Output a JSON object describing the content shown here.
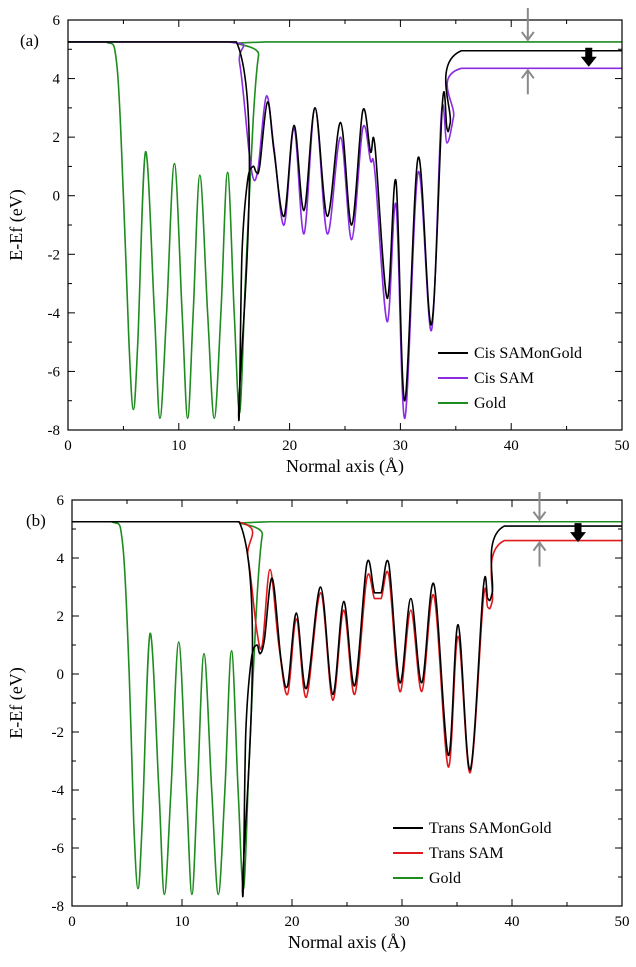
{
  "chart_data": [
    {
      "type": "line",
      "panel_label": "(a)",
      "xlabel": "Normal axis (Å)",
      "ylabel": "E-Ef (eV)",
      "xlim": [
        0,
        50
      ],
      "ylim": [
        -8,
        6
      ],
      "xticks": [
        "0",
        "10",
        "20",
        "30",
        "40",
        "50"
      ],
      "yticks": [
        "-8",
        "-6",
        "-4",
        "-2",
        "0",
        "2",
        "4",
        "6"
      ],
      "legend_position": "lower-right",
      "series": [
        {
          "name": "Cis SAMonGold",
          "color": "#000000",
          "points": [
            [
              0,
              5.25
            ],
            [
              15.2,
              5.25
            ],
            [
              15.4,
              -7.5
            ],
            [
              15.7,
              -2
            ],
            [
              16.2,
              0.5
            ],
            [
              16.7,
              1.0
            ],
            [
              17.0,
              0.8
            ],
            [
              17.3,
              1.0
            ],
            [
              18.0,
              3.2
            ],
            [
              18.6,
              1.5
            ],
            [
              19.5,
              -0.7
            ],
            [
              20.4,
              2.4
            ],
            [
              21.3,
              -0.5
            ],
            [
              22.3,
              3.0
            ],
            [
              23.4,
              -0.7
            ],
            [
              24.6,
              2.5
            ],
            [
              25.6,
              -1.0
            ],
            [
              26.6,
              2.9
            ],
            [
              27.3,
              1.5
            ],
            [
              27.7,
              1.7
            ],
            [
              28.8,
              -3.5
            ],
            [
              29.6,
              0.5
            ],
            [
              30.4,
              -7.0
            ],
            [
              31.6,
              1.3
            ],
            [
              32.8,
              -4.4
            ],
            [
              33.8,
              3.2
            ],
            [
              34.2,
              2.3
            ],
            [
              34.5,
              2.5
            ],
            [
              35.5,
              4.95
            ],
            [
              50,
              4.95
            ]
          ]
        },
        {
          "name": "Cis SAM",
          "color": "#8b2be2",
          "points": [
            [
              0,
              5.25
            ],
            [
              14.5,
              5.25
            ],
            [
              15.5,
              4.5
            ],
            [
              16.5,
              1.0
            ],
            [
              17.1,
              0.8
            ],
            [
              17.9,
              3.4
            ],
            [
              18.6,
              1.6
            ],
            [
              19.5,
              -1.0
            ],
            [
              20.4,
              2.3
            ],
            [
              21.3,
              -1.3
            ],
            [
              22.3,
              3.0
            ],
            [
              23.4,
              -1.3
            ],
            [
              24.6,
              2.0
            ],
            [
              25.6,
              -1.5
            ],
            [
              26.6,
              2.3
            ],
            [
              27.3,
              1.2
            ],
            [
              27.7,
              0.8
            ],
            [
              28.8,
              -4.3
            ],
            [
              29.6,
              -0.3
            ],
            [
              30.4,
              -7.6
            ],
            [
              31.6,
              0.8
            ],
            [
              32.8,
              -4.6
            ],
            [
              33.7,
              2.8
            ],
            [
              34.2,
              1.8
            ],
            [
              34.8,
              2.7
            ],
            [
              35.5,
              4.35
            ],
            [
              50,
              4.35
            ]
          ]
        },
        {
          "name": "Gold",
          "color": "#1e8c1e",
          "points": [
            [
              0,
              5.25
            ],
            [
              3.4,
              5.25
            ],
            [
              4.4,
              4.5
            ],
            [
              5.0,
              0
            ],
            [
              5.5,
              -5
            ],
            [
              5.9,
              -7.3
            ],
            [
              6.3,
              -5
            ],
            [
              7.0,
              1.5
            ],
            [
              7.8,
              -4
            ],
            [
              8.3,
              -7.6
            ],
            [
              8.9,
              -4
            ],
            [
              9.6,
              1.1
            ],
            [
              10.3,
              -4
            ],
            [
              10.8,
              -7.6
            ],
            [
              11.3,
              -4
            ],
            [
              11.9,
              0.7
            ],
            [
              12.6,
              -4
            ],
            [
              13.2,
              -7.6
            ],
            [
              13.8,
              -4
            ],
            [
              14.4,
              0.8
            ],
            [
              15.0,
              -4
            ],
            [
              15.5,
              -7.4
            ],
            [
              16.0,
              -3
            ],
            [
              16.7,
              2.5
            ],
            [
              17.2,
              4.8
            ],
            [
              17.8,
              5.25
            ],
            [
              50,
              5.25
            ]
          ]
        }
      ]
    },
    {
      "type": "line",
      "panel_label": "(b)",
      "xlabel": "Normal axis (Å)",
      "ylabel": "E-Ef (eV)",
      "xlim": [
        0,
        50
      ],
      "ylim": [
        -8,
        6
      ],
      "xticks": [
        "0",
        "10",
        "20",
        "30",
        "40",
        "50"
      ],
      "yticks": [
        "-8",
        "-6",
        "-4",
        "-2",
        "0",
        "2",
        "4",
        "6"
      ],
      "legend_position": "lower-right",
      "series": [
        {
          "name": "Trans SAMonGold",
          "color": "#000000",
          "points": [
            [
              0,
              5.25
            ],
            [
              15.2,
              5.25
            ],
            [
              15.5,
              -7.5
            ],
            [
              15.8,
              -2
            ],
            [
              16.3,
              0.5
            ],
            [
              16.8,
              1.0
            ],
            [
              17.1,
              0.7
            ],
            [
              17.5,
              1.2
            ],
            [
              18.2,
              3.3
            ],
            [
              19.0,
              0.5
            ],
            [
              19.6,
              -0.4
            ],
            [
              20.4,
              2.1
            ],
            [
              21.3,
              -0.5
            ],
            [
              22.6,
              3.0
            ],
            [
              23.7,
              -0.7
            ],
            [
              24.7,
              2.5
            ],
            [
              25.7,
              -0.4
            ],
            [
              26.8,
              3.8
            ],
            [
              27.5,
              2.8
            ],
            [
              28.1,
              2.8
            ],
            [
              28.8,
              3.8
            ],
            [
              29.8,
              -0.3
            ],
            [
              30.8,
              2.6
            ],
            [
              31.8,
              -0.3
            ],
            [
              32.9,
              3.1
            ],
            [
              34.2,
              -2.8
            ],
            [
              35.1,
              1.7
            ],
            [
              36.2,
              -3.3
            ],
            [
              37.4,
              3.0
            ],
            [
              37.8,
              2.6
            ],
            [
              38.2,
              2.8
            ],
            [
              39.3,
              5.1
            ],
            [
              50,
              5.1
            ]
          ]
        },
        {
          "name": "Trans SAM",
          "color": "#e0191d",
          "points": [
            [
              0,
              5.25
            ],
            [
              15.0,
              5.25
            ],
            [
              16.0,
              4.0
            ],
            [
              16.8,
              1.5
            ],
            [
              17.3,
              1.0
            ],
            [
              18.0,
              3.6
            ],
            [
              18.8,
              1.0
            ],
            [
              19.6,
              -0.7
            ],
            [
              20.4,
              1.9
            ],
            [
              21.3,
              -0.8
            ],
            [
              22.6,
              2.8
            ],
            [
              23.7,
              -0.9
            ],
            [
              24.7,
              2.2
            ],
            [
              25.7,
              -0.7
            ],
            [
              26.8,
              3.3
            ],
            [
              27.5,
              2.6
            ],
            [
              28.1,
              2.6
            ],
            [
              28.8,
              3.4
            ],
            [
              29.8,
              -0.6
            ],
            [
              30.8,
              2.2
            ],
            [
              31.8,
              -0.6
            ],
            [
              32.9,
              2.7
            ],
            [
              34.2,
              -3.2
            ],
            [
              35.1,
              1.3
            ],
            [
              36.2,
              -3.4
            ],
            [
              37.4,
              2.6
            ],
            [
              37.8,
              2.3
            ],
            [
              38.2,
              2.5
            ],
            [
              39.3,
              4.6
            ],
            [
              50,
              4.6
            ]
          ]
        },
        {
          "name": "Gold",
          "color": "#1e8c1e",
          "points": [
            [
              0,
              5.25
            ],
            [
              3.6,
              5.25
            ],
            [
              4.6,
              4.5
            ],
            [
              5.2,
              0
            ],
            [
              5.6,
              -5
            ],
            [
              6.0,
              -7.4
            ],
            [
              6.4,
              -5
            ],
            [
              7.1,
              1.4
            ],
            [
              7.9,
              -4
            ],
            [
              8.4,
              -7.6
            ],
            [
              9.0,
              -4
            ],
            [
              9.7,
              1.1
            ],
            [
              10.4,
              -4
            ],
            [
              10.9,
              -7.6
            ],
            [
              11.4,
              -4
            ],
            [
              12.0,
              0.7
            ],
            [
              12.7,
              -4
            ],
            [
              13.3,
              -7.6
            ],
            [
              13.9,
              -4
            ],
            [
              14.5,
              0.8
            ],
            [
              15.1,
              -4
            ],
            [
              15.6,
              -7.4
            ],
            [
              16.1,
              -3
            ],
            [
              16.8,
              2.5
            ],
            [
              17.3,
              4.8
            ],
            [
              17.9,
              5.25
            ],
            [
              50,
              5.25
            ]
          ]
        }
      ]
    }
  ]
}
